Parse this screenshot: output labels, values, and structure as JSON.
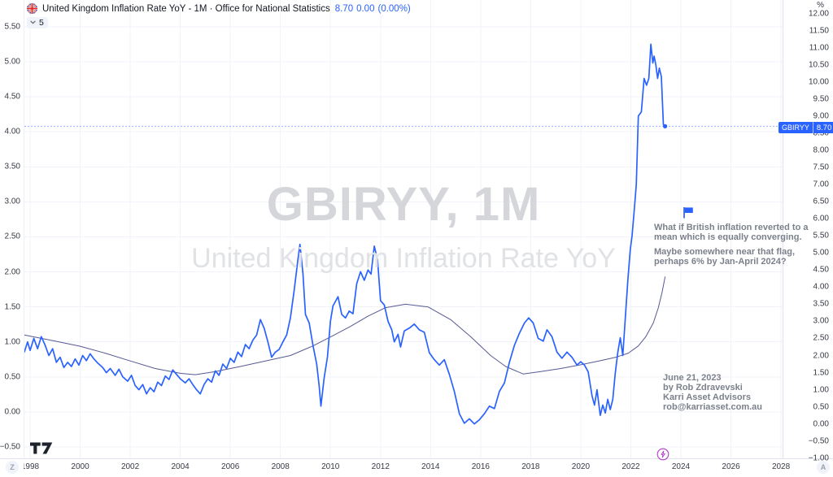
{
  "header": {
    "title": "United Kingdom Inflation Rate YoY - 1M · Office for National Statistics",
    "last_value": "8.70",
    "change": "0.00",
    "change_percent": "(0.00%)",
    "dropdown_value": "5"
  },
  "watermark": {
    "line1": "GBIRYY, 1M",
    "line2": "United Kingdom Inflation Rate YoY"
  },
  "annotations": {
    "note1_line1": "What if British inflation reverted to a",
    "note1_line2": "mean which is equally converging.",
    "note2_line1": "Maybe somewhere near that flag,",
    "note2_line2": "perhaps 6% by Jan-April 2024?",
    "signature": [
      "June 21, 2023",
      "by Rob Zdravevski",
      "Karri Asset Advisors",
      "rob@karriasset.com.au"
    ]
  },
  "price_label": {
    "symbol": "GBIRYY",
    "value": "8.70"
  },
  "corner_buttons": {
    "left": "Z",
    "right": "A"
  },
  "axes": {
    "right_unit": "%",
    "left_ticks": [
      "5.50",
      "5.00",
      "4.50",
      "4.00",
      "3.50",
      "3.00",
      "2.50",
      "2.00",
      "1.50",
      "1.00",
      "0.50",
      "0.00",
      "−0.50"
    ],
    "right_ticks": [
      "12.00",
      "11.50",
      "11.00",
      "10.50",
      "10.00",
      "9.50",
      "9.00",
      "8.50",
      "8.00",
      "7.50",
      "7.00",
      "6.50",
      "6.00",
      "5.50",
      "5.00",
      "4.50",
      "4.00",
      "3.50",
      "3.00",
      "2.50",
      "2.00",
      "1.50",
      "1.00",
      "0.50",
      "0.00",
      "−0.50",
      "−1.00"
    ],
    "time_ticks": [
      "1998",
      "2000",
      "2002",
      "2004",
      "2006",
      "2008",
      "2010",
      "2012",
      "2014",
      "2016",
      "2018",
      "2020",
      "2022",
      "2024",
      "2026",
      "2028"
    ]
  },
  "colors": {
    "accent": "#2962FF",
    "mean_line": "#565993",
    "grid": "#f0f3fa",
    "axis_text": "#363a45",
    "note_text": "#7b808b",
    "border": "#e0e3eb",
    "events_purple": "#b13fc9",
    "logo": "#1e222d"
  },
  "chart_data": {
    "type": "line",
    "title": "United Kingdom Inflation Rate YoY",
    "symbol": "GBIRYY",
    "interval": "1M",
    "source": "Office for National Statistics",
    "x_axis": {
      "label": "year",
      "range": [
        1997.77,
        2028.3
      ],
      "tick_step_years": 2
    },
    "y_axis_right": {
      "unit": "%",
      "range": [
        -1.0,
        12.0
      ],
      "tick_step": 0.5
    },
    "y_axis_left": {
      "range": [
        -0.5,
        5.5
      ],
      "tick_step": 0.5
    },
    "grid": true,
    "legend_position": "none",
    "last_price": 8.7,
    "last_point": [
      2023.37,
      8.7
    ],
    "flag_marker": {
      "x": 2024.15,
      "y": 6.25
    },
    "series": [
      {
        "name": "GBIRYY inflation rate YoY %",
        "color": "#2962FF",
        "width": 1.7,
        "points": [
          [
            1997.77,
            2.1
          ],
          [
            1997.9,
            2.4
          ],
          [
            1998.0,
            2.15
          ],
          [
            1998.15,
            2.5
          ],
          [
            1998.3,
            2.2
          ],
          [
            1998.45,
            2.55
          ],
          [
            1998.6,
            2.3
          ],
          [
            1998.75,
            2.0
          ],
          [
            1998.9,
            2.2
          ],
          [
            1999.05,
            1.8
          ],
          [
            1999.2,
            1.95
          ],
          [
            1999.35,
            1.65
          ],
          [
            1999.5,
            1.8
          ],
          [
            1999.65,
            1.68
          ],
          [
            1999.8,
            1.9
          ],
          [
            1999.95,
            1.72
          ],
          [
            2000.1,
            2.0
          ],
          [
            2000.25,
            1.85
          ],
          [
            2000.4,
            2.05
          ],
          [
            2000.55,
            1.9
          ],
          [
            2000.7,
            1.78
          ],
          [
            2000.9,
            1.65
          ],
          [
            2001.05,
            1.5
          ],
          [
            2001.2,
            1.62
          ],
          [
            2001.4,
            1.42
          ],
          [
            2001.55,
            1.6
          ],
          [
            2001.7,
            1.38
          ],
          [
            2001.9,
            1.25
          ],
          [
            2002.05,
            1.42
          ],
          [
            2002.2,
            1.12
          ],
          [
            2002.35,
            1.0
          ],
          [
            2002.5,
            1.15
          ],
          [
            2002.65,
            0.88
          ],
          [
            2002.8,
            1.06
          ],
          [
            2002.95,
            0.94
          ],
          [
            2003.1,
            1.22
          ],
          [
            2003.25,
            1.12
          ],
          [
            2003.4,
            1.4
          ],
          [
            2003.55,
            1.3
          ],
          [
            2003.7,
            1.58
          ],
          [
            2003.85,
            1.45
          ],
          [
            2004.0,
            1.32
          ],
          [
            2004.2,
            1.2
          ],
          [
            2004.35,
            1.32
          ],
          [
            2004.5,
            1.15
          ],
          [
            2004.65,
            1.0
          ],
          [
            2004.8,
            0.88
          ],
          [
            2004.95,
            1.15
          ],
          [
            2005.1,
            1.32
          ],
          [
            2005.25,
            1.22
          ],
          [
            2005.4,
            1.55
          ],
          [
            2005.55,
            1.42
          ],
          [
            2005.7,
            1.75
          ],
          [
            2005.85,
            1.62
          ],
          [
            2006.0,
            1.92
          ],
          [
            2006.15,
            1.8
          ],
          [
            2006.3,
            2.1
          ],
          [
            2006.45,
            1.97
          ],
          [
            2006.6,
            2.32
          ],
          [
            2006.75,
            2.2
          ],
          [
            2006.9,
            2.45
          ],
          [
            2007.05,
            2.6
          ],
          [
            2007.2,
            3.05
          ],
          [
            2007.35,
            2.8
          ],
          [
            2007.5,
            2.4
          ],
          [
            2007.65,
            1.95
          ],
          [
            2007.8,
            2.1
          ],
          [
            2007.95,
            2.18
          ],
          [
            2008.1,
            2.4
          ],
          [
            2008.25,
            2.6
          ],
          [
            2008.4,
            3.1
          ],
          [
            2008.55,
            3.9
          ],
          [
            2008.7,
            4.8
          ],
          [
            2008.78,
            5.25
          ],
          [
            2008.9,
            4.4
          ],
          [
            2009.0,
            3.2
          ],
          [
            2009.15,
            2.95
          ],
          [
            2009.3,
            2.3
          ],
          [
            2009.45,
            1.75
          ],
          [
            2009.55,
            1.1
          ],
          [
            2009.62,
            0.52
          ],
          [
            2009.75,
            1.35
          ],
          [
            2009.88,
            1.95
          ],
          [
            2010.0,
            3.0
          ],
          [
            2010.1,
            3.45
          ],
          [
            2010.3,
            3.72
          ],
          [
            2010.45,
            3.2
          ],
          [
            2010.6,
            3.1
          ],
          [
            2010.75,
            3.3
          ],
          [
            2010.9,
            3.22
          ],
          [
            2011.05,
            4.1
          ],
          [
            2011.2,
            4.45
          ],
          [
            2011.35,
            4.2
          ],
          [
            2011.5,
            4.5
          ],
          [
            2011.62,
            4.38
          ],
          [
            2011.75,
            5.2
          ],
          [
            2011.88,
            4.8
          ],
          [
            2012.0,
            3.6
          ],
          [
            2012.15,
            3.48
          ],
          [
            2012.3,
            3.0
          ],
          [
            2012.45,
            2.75
          ],
          [
            2012.55,
            2.4
          ],
          [
            2012.7,
            2.62
          ],
          [
            2012.8,
            2.25
          ],
          [
            2012.95,
            2.72
          ],
          [
            2013.15,
            2.8
          ],
          [
            2013.35,
            2.92
          ],
          [
            2013.55,
            2.75
          ],
          [
            2013.75,
            2.68
          ],
          [
            2013.95,
            2.08
          ],
          [
            2014.15,
            1.88
          ],
          [
            2014.35,
            1.72
          ],
          [
            2014.55,
            1.88
          ],
          [
            2014.75,
            1.45
          ],
          [
            2014.95,
            0.95
          ],
          [
            2015.15,
            0.3
          ],
          [
            2015.35,
            0.02
          ],
          [
            2015.55,
            0.15
          ],
          [
            2015.75,
            0.0
          ],
          [
            2015.95,
            0.12
          ],
          [
            2016.15,
            0.3
          ],
          [
            2016.35,
            0.52
          ],
          [
            2016.55,
            0.45
          ],
          [
            2016.75,
            0.95
          ],
          [
            2016.95,
            1.2
          ],
          [
            2017.15,
            1.8
          ],
          [
            2017.35,
            2.3
          ],
          [
            2017.55,
            2.65
          ],
          [
            2017.75,
            2.95
          ],
          [
            2017.92,
            3.1
          ],
          [
            2018.1,
            2.95
          ],
          [
            2018.3,
            2.5
          ],
          [
            2018.5,
            2.42
          ],
          [
            2018.65,
            2.75
          ],
          [
            2018.85,
            2.55
          ],
          [
            2019.05,
            2.1
          ],
          [
            2019.25,
            1.92
          ],
          [
            2019.45,
            2.1
          ],
          [
            2019.65,
            1.95
          ],
          [
            2019.85,
            1.72
          ],
          [
            2020.0,
            1.82
          ],
          [
            2020.15,
            1.72
          ],
          [
            2020.3,
            1.52
          ],
          [
            2020.45,
            0.82
          ],
          [
            2020.55,
            0.55
          ],
          [
            2020.65,
            1.0
          ],
          [
            2020.78,
            0.25
          ],
          [
            2020.88,
            0.55
          ],
          [
            2020.98,
            0.32
          ],
          [
            2021.08,
            0.72
          ],
          [
            2021.18,
            0.42
          ],
          [
            2021.28,
            0.72
          ],
          [
            2021.38,
            1.5
          ],
          [
            2021.48,
            2.1
          ],
          [
            2021.58,
            2.52
          ],
          [
            2021.68,
            2.0
          ],
          [
            2021.78,
            3.1
          ],
          [
            2021.88,
            4.2
          ],
          [
            2021.98,
            5.1
          ],
          [
            2022.05,
            5.5
          ],
          [
            2022.13,
            6.2
          ],
          [
            2022.22,
            7.0
          ],
          [
            2022.3,
            9.0
          ],
          [
            2022.42,
            9.12
          ],
          [
            2022.53,
            10.1
          ],
          [
            2022.63,
            9.9
          ],
          [
            2022.72,
            10.1
          ],
          [
            2022.8,
            11.1
          ],
          [
            2022.88,
            10.55
          ],
          [
            2022.93,
            10.75
          ],
          [
            2023.0,
            10.5
          ],
          [
            2023.07,
            10.1
          ],
          [
            2023.14,
            10.4
          ],
          [
            2023.22,
            10.15
          ],
          [
            2023.3,
            8.75
          ],
          [
            2023.37,
            8.7
          ]
        ]
      },
      {
        "name": "converging mean",
        "color": "#565993",
        "width": 1,
        "points": [
          [
            1997.77,
            2.6
          ],
          [
            1999.0,
            2.42
          ],
          [
            2000.0,
            2.27
          ],
          [
            2001.0,
            2.07
          ],
          [
            2002.0,
            1.84
          ],
          [
            2003.0,
            1.62
          ],
          [
            2004.0,
            1.48
          ],
          [
            2004.6,
            1.44
          ],
          [
            2005.4,
            1.53
          ],
          [
            2006.4,
            1.68
          ],
          [
            2007.4,
            1.84
          ],
          [
            2008.4,
            2.0
          ],
          [
            2009.3,
            2.28
          ],
          [
            2010.1,
            2.58
          ],
          [
            2010.8,
            2.85
          ],
          [
            2011.5,
            3.15
          ],
          [
            2012.2,
            3.4
          ],
          [
            2013.0,
            3.5
          ],
          [
            2013.9,
            3.42
          ],
          [
            2014.8,
            3.05
          ],
          [
            2015.6,
            2.55
          ],
          [
            2016.4,
            2.0
          ],
          [
            2017.0,
            1.68
          ],
          [
            2017.7,
            1.46
          ],
          [
            2018.4,
            1.53
          ],
          [
            2019.2,
            1.62
          ],
          [
            2020.0,
            1.73
          ],
          [
            2020.8,
            1.85
          ],
          [
            2021.4,
            1.95
          ],
          [
            2021.9,
            2.07
          ],
          [
            2022.3,
            2.28
          ],
          [
            2022.6,
            2.55
          ],
          [
            2022.9,
            2.95
          ],
          [
            2023.1,
            3.4
          ],
          [
            2023.25,
            3.85
          ],
          [
            2023.37,
            4.3
          ]
        ]
      }
    ]
  }
}
